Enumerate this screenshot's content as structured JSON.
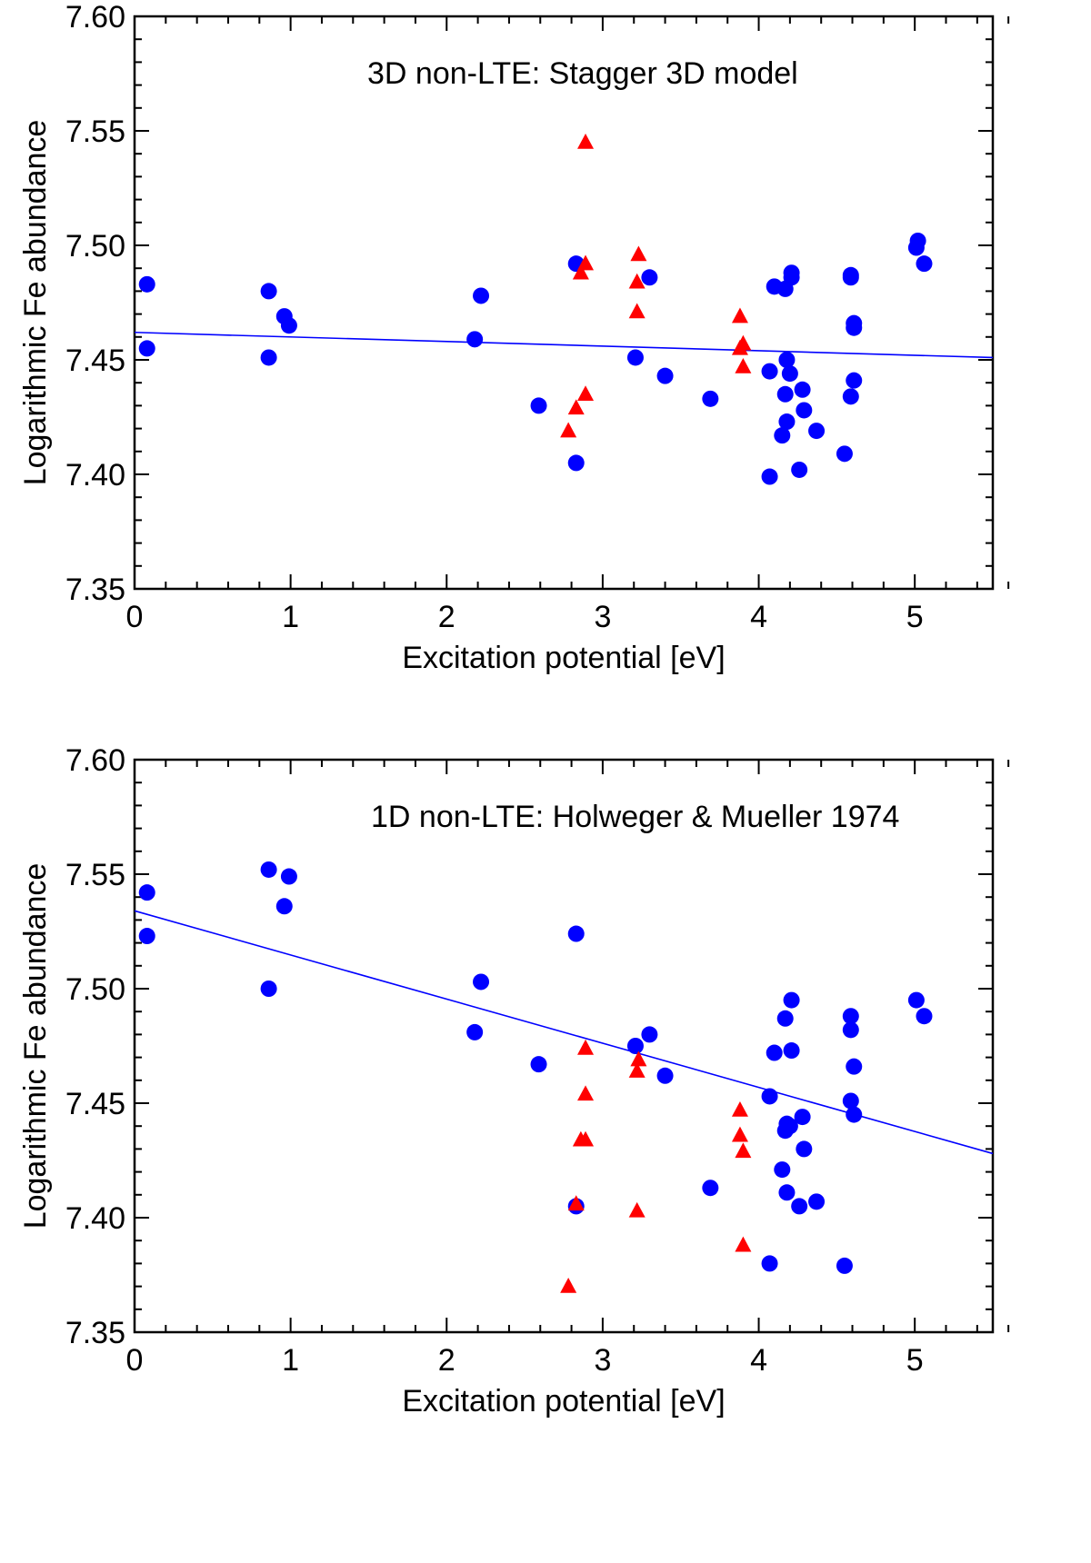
{
  "chart_data": [
    {
      "type": "scatter",
      "title": "3D non-LTE: Stagger 3D model",
      "xlabel": "Excitation potential [eV]",
      "ylabel": "Logarithmic Fe abundance",
      "xlim": [
        0,
        5.5
      ],
      "ylim": [
        7.35,
        7.6
      ],
      "x_ticks": [
        0,
        1,
        2,
        3,
        4,
        5
      ],
      "y_ticks": [
        7.35,
        7.4,
        7.45,
        7.5,
        7.55,
        7.6
      ],
      "x_tick_labels": [
        "0",
        "1",
        "2",
        "3",
        "4",
        "5"
      ],
      "y_tick_labels": [
        "7.35",
        "7.40",
        "7.45",
        "7.50",
        "7.55",
        "7.60"
      ],
      "fit_line": {
        "x": [
          0,
          5.5
        ],
        "y": [
          7.462,
          7.451
        ],
        "color": "#0000ff"
      },
      "series": [
        {
          "name": "circles",
          "marker": "circle",
          "color": "#0000ff",
          "points": [
            [
              0.08,
              7.483
            ],
            [
              0.08,
              7.455
            ],
            [
              0.86,
              7.48
            ],
            [
              0.86,
              7.451
            ],
            [
              0.96,
              7.469
            ],
            [
              0.99,
              7.465
            ],
            [
              2.18,
              7.459
            ],
            [
              2.22,
              7.478
            ],
            [
              2.59,
              7.43
            ],
            [
              2.83,
              7.492
            ],
            [
              2.83,
              7.405
            ],
            [
              3.21,
              7.451
            ],
            [
              3.3,
              7.486
            ],
            [
              3.4,
              7.443
            ],
            [
              3.69,
              7.433
            ],
            [
              4.07,
              7.445
            ],
            [
              4.07,
              7.399
            ],
            [
              4.1,
              7.482
            ],
            [
              4.15,
              7.417
            ],
            [
              4.17,
              7.481
            ],
            [
              4.17,
              7.435
            ],
            [
              4.18,
              7.45
            ],
            [
              4.18,
              7.423
            ],
            [
              4.2,
              7.444
            ],
            [
              4.21,
              7.488
            ],
            [
              4.21,
              7.486
            ],
            [
              4.26,
              7.402
            ],
            [
              4.28,
              7.437
            ],
            [
              4.29,
              7.428
            ],
            [
              4.37,
              7.419
            ],
            [
              4.55,
              7.409
            ],
            [
              4.59,
              7.487
            ],
            [
              4.59,
              7.486
            ],
            [
              4.59,
              7.434
            ],
            [
              4.61,
              7.466
            ],
            [
              4.61,
              7.464
            ],
            [
              4.61,
              7.441
            ],
            [
              5.01,
              7.499
            ],
            [
              5.02,
              7.502
            ],
            [
              5.06,
              7.492
            ]
          ]
        },
        {
          "name": "triangles",
          "marker": "triangle",
          "color": "#ff0000",
          "points": [
            [
              2.78,
              7.419
            ],
            [
              2.83,
              7.429
            ],
            [
              2.86,
              7.488
            ],
            [
              2.89,
              7.545
            ],
            [
              2.89,
              7.492
            ],
            [
              2.89,
              7.435
            ],
            [
              3.22,
              7.484
            ],
            [
              3.22,
              7.471
            ],
            [
              3.23,
              7.496
            ],
            [
              3.88,
              7.469
            ],
            [
              3.88,
              7.455
            ],
            [
              3.9,
              7.457
            ],
            [
              3.9,
              7.447
            ]
          ]
        }
      ]
    },
    {
      "type": "scatter",
      "title": "1D non-LTE: Holweger & Mueller 1974",
      "xlabel": "Excitation potential [eV]",
      "ylabel": "Logarithmic Fe abundance",
      "xlim": [
        0,
        5.5
      ],
      "ylim": [
        7.35,
        7.6
      ],
      "x_ticks": [
        0,
        1,
        2,
        3,
        4,
        5
      ],
      "y_ticks": [
        7.35,
        7.4,
        7.45,
        7.5,
        7.55,
        7.6
      ],
      "x_tick_labels": [
        "0",
        "1",
        "2",
        "3",
        "4",
        "5"
      ],
      "y_tick_labels": [
        "7.35",
        "7.40",
        "7.45",
        "7.50",
        "7.55",
        "7.60"
      ],
      "fit_line": {
        "x": [
          0,
          5.5
        ],
        "y": [
          7.534,
          7.428
        ],
        "color": "#0000ff"
      },
      "series": [
        {
          "name": "circles",
          "marker": "circle",
          "color": "#0000ff",
          "points": [
            [
              0.08,
              7.542
            ],
            [
              0.08,
              7.523
            ],
            [
              0.86,
              7.552
            ],
            [
              0.86,
              7.5
            ],
            [
              0.96,
              7.536
            ],
            [
              0.99,
              7.549
            ],
            [
              2.18,
              7.481
            ],
            [
              2.22,
              7.503
            ],
            [
              2.59,
              7.467
            ],
            [
              2.83,
              7.524
            ],
            [
              2.83,
              7.405
            ],
            [
              3.21,
              7.475
            ],
            [
              3.3,
              7.48
            ],
            [
              3.4,
              7.462
            ],
            [
              3.69,
              7.413
            ],
            [
              4.07,
              7.453
            ],
            [
              4.07,
              7.38
            ],
            [
              4.1,
              7.472
            ],
            [
              4.15,
              7.421
            ],
            [
              4.17,
              7.487
            ],
            [
              4.17,
              7.438
            ],
            [
              4.18,
              7.441
            ],
            [
              4.18,
              7.411
            ],
            [
              4.21,
              7.495
            ],
            [
              4.21,
              7.473
            ],
            [
              4.2,
              7.44
            ],
            [
              4.26,
              7.405
            ],
            [
              4.28,
              7.444
            ],
            [
              4.29,
              7.43
            ],
            [
              4.37,
              7.407
            ],
            [
              4.55,
              7.379
            ],
            [
              4.59,
              7.488
            ],
            [
              4.59,
              7.482
            ],
            [
              4.59,
              7.451
            ],
            [
              4.61,
              7.466
            ],
            [
              4.61,
              7.445
            ],
            [
              5.01,
              7.495
            ],
            [
              5.06,
              7.488
            ]
          ]
        },
        {
          "name": "triangles",
          "marker": "triangle",
          "color": "#ff0000",
          "points": [
            [
              2.78,
              7.37
            ],
            [
              2.83,
              7.406
            ],
            [
              2.86,
              7.434
            ],
            [
              2.89,
              7.474
            ],
            [
              2.89,
              7.454
            ],
            [
              2.89,
              7.434
            ],
            [
              3.22,
              7.464
            ],
            [
              3.22,
              7.403
            ],
            [
              3.23,
              7.469
            ],
            [
              3.88,
              7.447
            ],
            [
              3.88,
              7.436
            ],
            [
              3.9,
              7.429
            ],
            [
              3.9,
              7.388
            ]
          ]
        }
      ]
    }
  ]
}
